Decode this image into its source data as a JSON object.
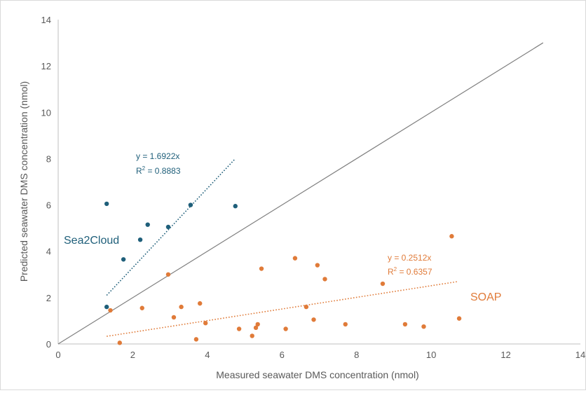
{
  "chart_data": {
    "type": "scatter",
    "xlabel": "Measured seawater DMS concentration (nmol)",
    "ylabel": "Predicted seawater DMS concentration  (nmol)",
    "xlim": [
      0,
      14
    ],
    "ylim": [
      0,
      14
    ],
    "x_ticks": [
      "0",
      "2",
      "4",
      "6",
      "8",
      "10",
      "12",
      "14"
    ],
    "y_ticks": [
      "0",
      "2",
      "4",
      "6",
      "8",
      "10",
      "12",
      "14"
    ],
    "grid": false,
    "reference_line": {
      "x": [
        0,
        13
      ],
      "y": [
        0,
        13
      ],
      "color": "#7f7f7f"
    },
    "series": [
      {
        "name": "Sea2Cloud",
        "color": "#1f5f7a",
        "points": [
          [
            1.3,
            6.05
          ],
          [
            1.3,
            1.6
          ],
          [
            1.75,
            3.65
          ],
          [
            2.2,
            4.5
          ],
          [
            2.4,
            5.15
          ],
          [
            2.95,
            5.05
          ],
          [
            3.55,
            6.0
          ],
          [
            4.75,
            5.95
          ]
        ],
        "trendline": {
          "x": [
            1.3,
            4.75
          ],
          "y": [
            2.1,
            8.0
          ]
        },
        "equation": "y = 1.6922x",
        "r2_prefix": "R",
        "r2_sup": "2",
        "r2_value": " = 0.8883"
      },
      {
        "name": "SOAP",
        "color": "#e07b39",
        "points": [
          [
            1.4,
            1.45
          ],
          [
            1.65,
            0.05
          ],
          [
            2.25,
            1.55
          ],
          [
            2.95,
            3.0
          ],
          [
            3.1,
            1.15
          ],
          [
            3.3,
            1.6
          ],
          [
            3.7,
            0.2
          ],
          [
            3.8,
            1.75
          ],
          [
            3.95,
            0.9
          ],
          [
            4.85,
            0.65
          ],
          [
            5.2,
            0.35
          ],
          [
            5.3,
            0.7
          ],
          [
            5.35,
            0.85
          ],
          [
            5.45,
            3.25
          ],
          [
            6.1,
            0.65
          ],
          [
            6.35,
            3.7
          ],
          [
            6.65,
            1.6
          ],
          [
            6.85,
            1.05
          ],
          [
            6.95,
            3.4
          ],
          [
            7.15,
            2.8
          ],
          [
            7.7,
            0.85
          ],
          [
            8.7,
            2.6
          ],
          [
            9.3,
            0.85
          ],
          [
            9.8,
            0.75
          ],
          [
            10.55,
            4.65
          ],
          [
            10.75,
            1.1
          ]
        ],
        "trendline": {
          "x": [
            1.3,
            10.7
          ],
          "y": [
            0.33,
            2.69
          ]
        },
        "equation": "y = 0.2512x",
        "r2_prefix": "R",
        "r2_sup": "2",
        "r2_value": " = 0.6357"
      }
    ]
  }
}
